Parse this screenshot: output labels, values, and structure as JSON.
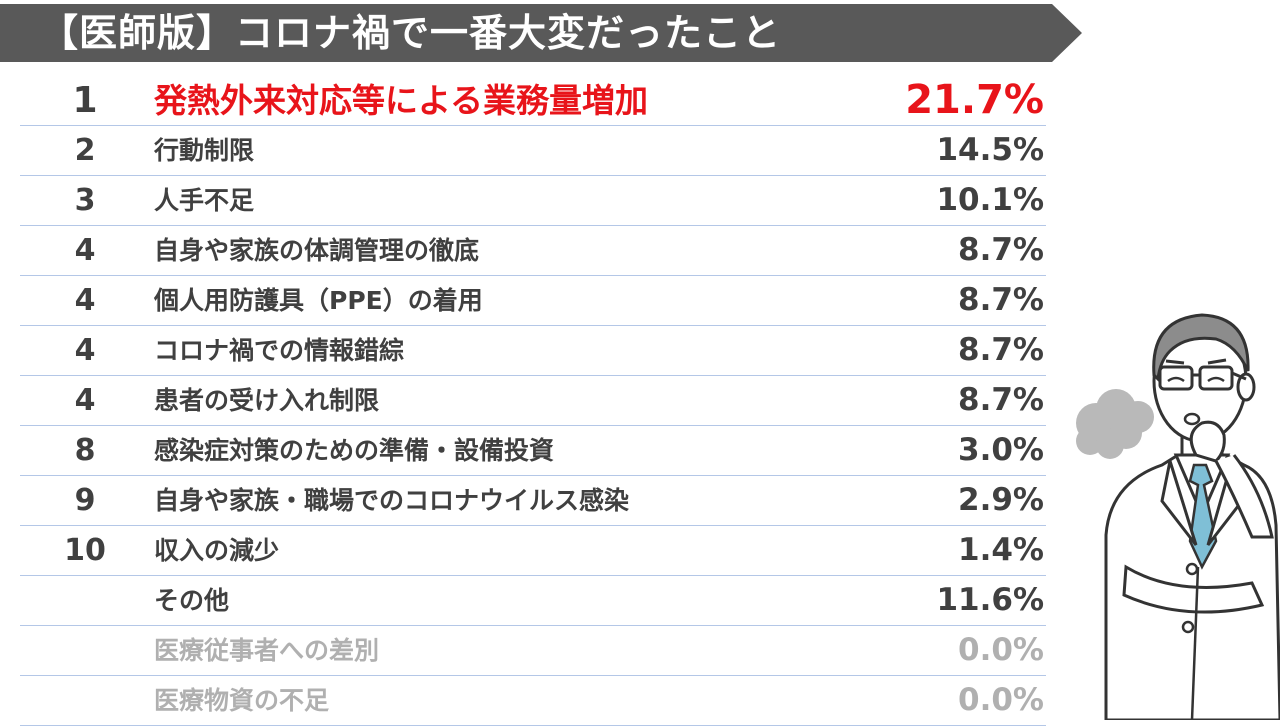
{
  "title": "【医師版】コロナ禍で一番大変だったこと",
  "chart_data": {
    "type": "table",
    "title": "【医師版】コロナ禍で一番大変だったこと",
    "rows": [
      {
        "rank": "1",
        "label": "発熱外来対応等による業務量増加",
        "value": "21.7%",
        "percent": 21.7,
        "style": "top"
      },
      {
        "rank": "2",
        "label": "行動制限",
        "value": "14.5%",
        "percent": 14.5,
        "style": "normal"
      },
      {
        "rank": "3",
        "label": "人手不足",
        "value": "10.1%",
        "percent": 10.1,
        "style": "normal"
      },
      {
        "rank": "4",
        "label": "自身や家族の体調管理の徹底",
        "value": "8.7%",
        "percent": 8.7,
        "style": "normal"
      },
      {
        "rank": "4",
        "label": "個人用防護具（PPE）の着用",
        "value": "8.7%",
        "percent": 8.7,
        "style": "normal"
      },
      {
        "rank": "4",
        "label": "コロナ禍での情報錯綜",
        "value": "8.7%",
        "percent": 8.7,
        "style": "normal"
      },
      {
        "rank": "4",
        "label": "患者の受け入れ制限",
        "value": "8.7%",
        "percent": 8.7,
        "style": "normal"
      },
      {
        "rank": "8",
        "label": "感染症対策のための準備・設備投資",
        "value": "3.0%",
        "percent": 3.0,
        "style": "normal"
      },
      {
        "rank": "9",
        "label": "自身や家族・職場でのコロナウイルス感染",
        "value": "2.9%",
        "percent": 2.9,
        "style": "normal"
      },
      {
        "rank": "10",
        "label": "収入の減少",
        "value": "1.4%",
        "percent": 1.4,
        "style": "normal"
      },
      {
        "rank": "",
        "label": "その他",
        "value": "11.6%",
        "percent": 11.6,
        "style": "normal"
      },
      {
        "rank": "",
        "label": "医療従事者への差別",
        "value": "0.0%",
        "percent": 0.0,
        "style": "muted"
      },
      {
        "rank": "",
        "label": "医療物資の不足",
        "value": "0.0%",
        "percent": 0.0,
        "style": "muted"
      }
    ]
  },
  "colors": {
    "banner": "#595959",
    "highlight": "#e8141a",
    "text": "#404040",
    "muted": "#b0b0b0",
    "divider": "#b4c7e7",
    "tie": "#7fbfd6"
  },
  "illustration": {
    "icon": "doctor-thinking-icon",
    "sigh_icon": "sigh-cloud-icon"
  }
}
